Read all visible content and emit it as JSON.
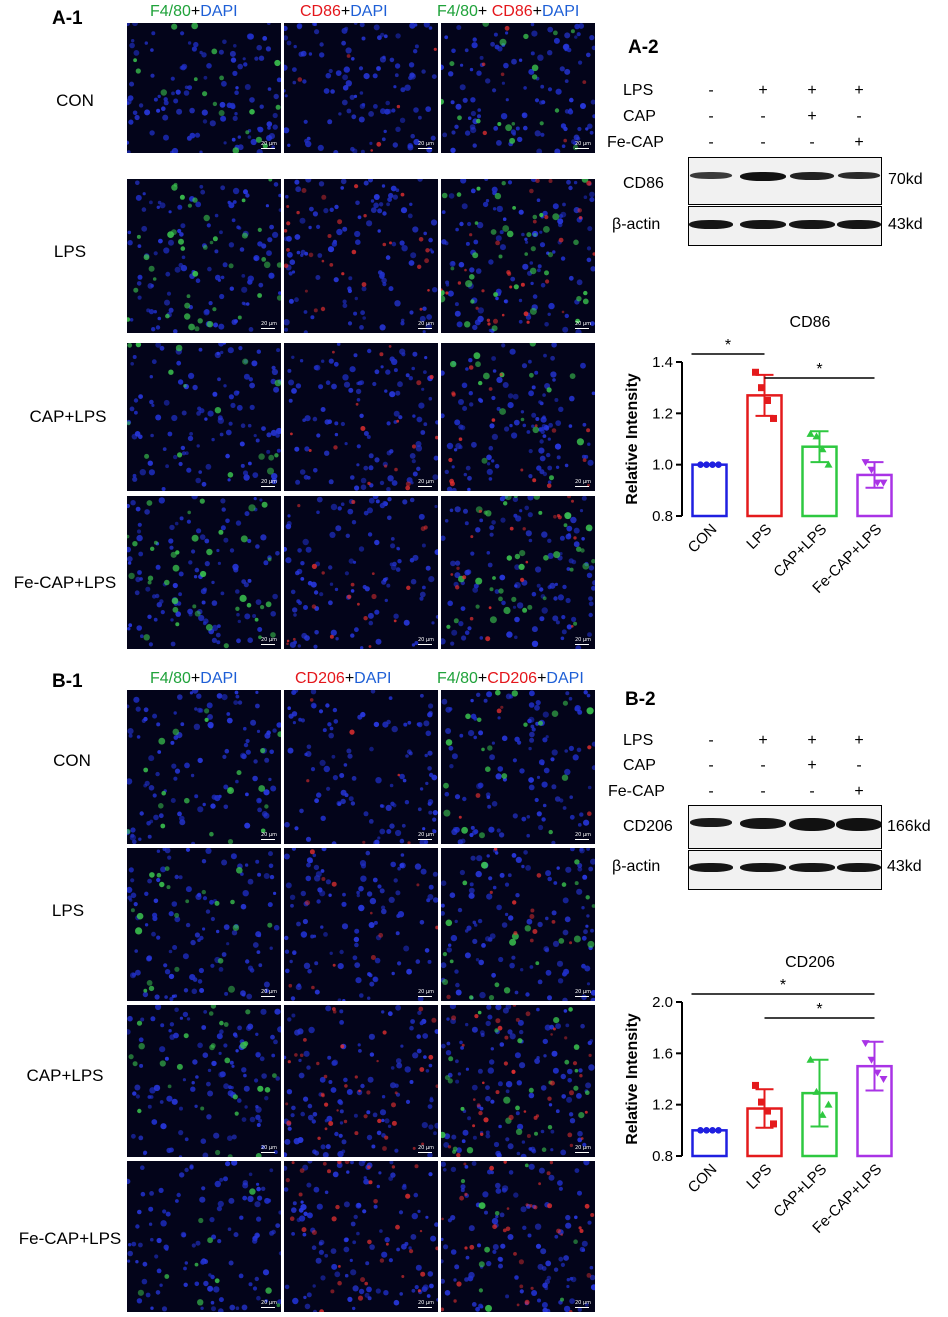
{
  "sectionA": {
    "panel1_label": "A-1",
    "panel2_label": "A-2",
    "headers": [
      [
        {
          "t": "F4/80",
          "c": "g"
        },
        {
          "t": "+",
          "c": "k"
        },
        {
          "t": "DAPI",
          "c": "b"
        }
      ],
      [
        {
          "t": "CD86",
          "c": "r"
        },
        {
          "t": "+",
          "c": "k"
        },
        {
          "t": "DAPI",
          "c": "b"
        }
      ],
      [
        {
          "t": "F4/80",
          "c": "g"
        },
        {
          "t": "+ ",
          "c": "k"
        },
        {
          "t": "CD86",
          "c": "r"
        },
        {
          "t": "+",
          "c": "k"
        },
        {
          "t": "DAPI",
          "c": "b"
        }
      ]
    ],
    "rows": [
      "CON",
      "LPS",
      "CAP+LPS",
      "Fe-CAP+LPS"
    ],
    "scale_bar": "20 μm",
    "treatments": [
      {
        "name": "LPS",
        "signs": [
          "-",
          "+",
          "+",
          "+"
        ]
      },
      {
        "name": "CAP",
        "signs": [
          "-",
          "-",
          "+",
          "-"
        ]
      },
      {
        "name": "Fe-CAP",
        "signs": [
          "-",
          "-",
          "-",
          "+"
        ]
      }
    ],
    "blots": [
      {
        "name": "CD86",
        "kd": "70kd"
      },
      {
        "name": "β-actin",
        "kd": "43kd"
      }
    ]
  },
  "sectionB": {
    "panel1_label": "B-1",
    "panel2_label": "B-2",
    "headers": [
      [
        {
          "t": "F4/80",
          "c": "g"
        },
        {
          "t": "+",
          "c": "k"
        },
        {
          "t": "DAPI",
          "c": "b"
        }
      ],
      [
        {
          "t": "CD206",
          "c": "r"
        },
        {
          "t": "+",
          "c": "k"
        },
        {
          "t": "DAPI",
          "c": "b"
        }
      ],
      [
        {
          "t": "F4/80",
          "c": "g"
        },
        {
          "t": "+",
          "c": "k"
        },
        {
          "t": "CD206",
          "c": "r"
        },
        {
          "t": "+",
          "c": "k"
        },
        {
          "t": "DAPI",
          "c": "b"
        }
      ]
    ],
    "rows": [
      "CON",
      "LPS",
      "CAP+LPS",
      "Fe-CAP+LPS"
    ],
    "scale_bar": "20 μm",
    "treatments": [
      {
        "name": "LPS",
        "signs": [
          "-",
          "+",
          "+",
          "+"
        ]
      },
      {
        "name": "CAP",
        "signs": [
          "-",
          "-",
          "+",
          "-"
        ]
      },
      {
        "name": "Fe-CAP",
        "signs": [
          "-",
          "-",
          "-",
          "+"
        ]
      }
    ],
    "blots": [
      {
        "name": "CD206",
        "kd": "166kd"
      },
      {
        "name": "β-actin",
        "kd": "43kd"
      }
    ]
  },
  "colors": {
    "CON": "#1f1fe0",
    "LPS": "#e41a1c",
    "CAP+LPS": "#2ec840",
    "Fe-CAP+LPS": "#a933e6",
    "green_text": "#1fa23a",
    "red_text": "#e4161b",
    "blue_text": "#1e5fd6"
  },
  "chart_data": [
    {
      "type": "bar",
      "title": "CD86",
      "categories": [
        "CON",
        "LPS",
        "CAP+LPS",
        "Fe-CAP+LPS"
      ],
      "values": [
        1.0,
        1.27,
        1.07,
        0.96
      ],
      "errors": [
        0.0,
        0.08,
        0.06,
        0.05
      ],
      "points": [
        [
          1.0,
          1.0,
          1.0,
          1.0
        ],
        [
          1.36,
          1.3,
          1.25,
          1.18
        ],
        [
          1.12,
          1.11,
          1.06,
          1.0
        ],
        [
          1.01,
          0.98,
          0.93,
          0.93
        ]
      ],
      "ylabel": "Relative Intensity",
      "ylim": [
        0.8,
        1.4
      ],
      "yticks": [
        "0.8",
        "1.0",
        "1.2",
        "1.4"
      ],
      "significance": [
        {
          "from": 0,
          "to": 1,
          "label": "*"
        },
        {
          "from": 1,
          "to": 3,
          "label": "*"
        }
      ]
    },
    {
      "type": "bar",
      "title": "CD206",
      "categories": [
        "CON",
        "LPS",
        "CAP+LPS",
        "Fe-CAP+LPS"
      ],
      "values": [
        1.0,
        1.17,
        1.29,
        1.5
      ],
      "errors": [
        0.0,
        0.15,
        0.26,
        0.19
      ],
      "points": [
        [
          1.0,
          1.0,
          1.0,
          1.0
        ],
        [
          1.35,
          1.22,
          1.15,
          1.05
        ],
        [
          1.55,
          1.3,
          1.12,
          1.2
        ],
        [
          1.68,
          1.55,
          1.45,
          1.4
        ]
      ],
      "ylabel": "Relative Intensity",
      "ylim": [
        0.8,
        2.0
      ],
      "yticks": [
        "0.8",
        "1.2",
        "1.6",
        "2.0"
      ],
      "significance": [
        {
          "from": 0,
          "to": 3,
          "label": "*"
        },
        {
          "from": 1,
          "to": 3,
          "label": "*"
        }
      ]
    }
  ]
}
